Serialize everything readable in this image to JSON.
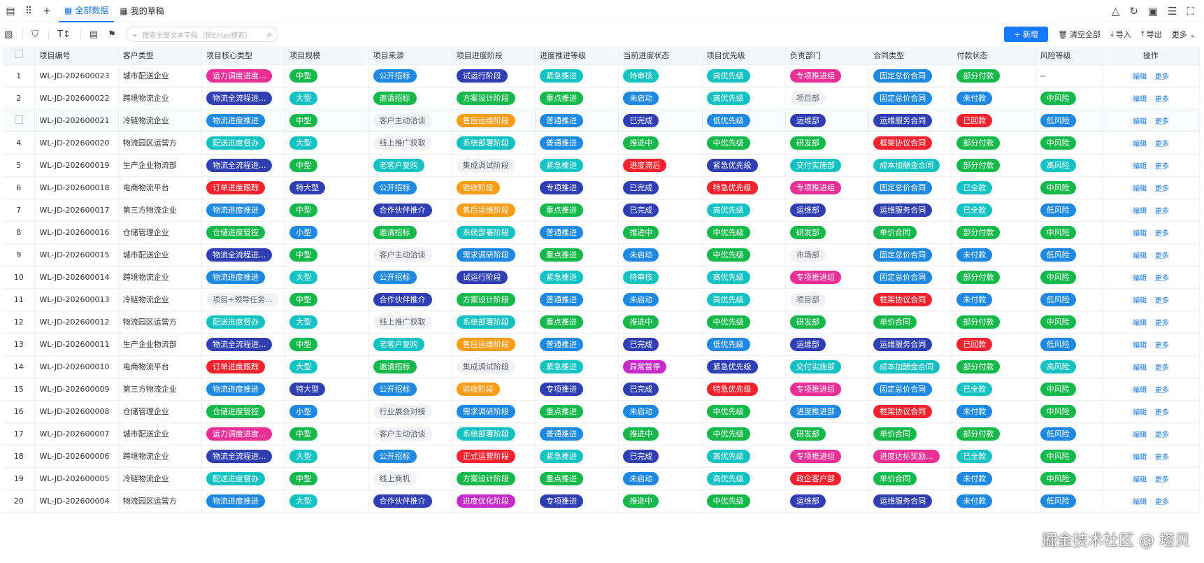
{
  "tabs": [
    {
      "label": "全部数据",
      "active": true
    },
    {
      "label": "我的草稿",
      "active": false
    }
  ],
  "search": {
    "placeholder": "搜索全部文本字段（按Enter搜索）"
  },
  "toolbar": {
    "add": "+ 新增",
    "clear": "清空全部",
    "import": "导入",
    "export": "导出",
    "more": "更多"
  },
  "columns": [
    "",
    "项目编号",
    "客户类型",
    "项目核心类型",
    "项目规模",
    "项目来源",
    "项目进度阶段",
    "进度推进等级",
    "当前进度状态",
    "项目优先级",
    "负责部门",
    "合同类型",
    "付款状态",
    "风险等级",
    "操作"
  ],
  "ops": {
    "edit": "编辑",
    "more": "更多"
  },
  "watermark": "掘金技术社区 @ 塔贝",
  "colors": {
    "pink": "#eb2f96",
    "navy": "#2f3fb3",
    "blue": "#1e88e5",
    "teal": "#13c2c2",
    "green": "#15b84a",
    "red": "#f5222d",
    "orange": "#fa9c14",
    "gray": "#f0f2f5",
    "purple": "#c62bc9"
  },
  "rows": [
    {
      "n": "1",
      "id": "WL-JD-202600023",
      "cust": "城市配送企业",
      "core": [
        "运力调度进度...",
        "pink"
      ],
      "scale": [
        "中型",
        "green"
      ],
      "src": [
        "公开招标",
        "blue"
      ],
      "stage": [
        "试运行阶段",
        "navy"
      ],
      "level": [
        "紧急推进",
        "teal"
      ],
      "state": [
        "待审核",
        "teal"
      ],
      "prio": [
        "高优先级",
        "teal"
      ],
      "dept": [
        "专项推进组",
        "pink"
      ],
      "contract": [
        "固定总价合同",
        "blue"
      ],
      "pay": [
        "部分付款",
        "green"
      ],
      "risk": [
        "--",
        "none"
      ]
    },
    {
      "n": "2",
      "id": "WL-JD-202600022",
      "cust": "跨境物流企业",
      "core": [
        "物流全流程进...",
        "navy"
      ],
      "scale": [
        "大型",
        "teal"
      ],
      "src": [
        "邀请招标",
        "green"
      ],
      "stage": [
        "方案设计阶段",
        "green"
      ],
      "level": [
        "重点推进",
        "green"
      ],
      "state": [
        "未启动",
        "blue"
      ],
      "prio": [
        "高优先级",
        "teal"
      ],
      "dept": [
        "项目部",
        "gray"
      ],
      "contract": [
        "固定总价合同",
        "blue"
      ],
      "pay": [
        "未付款",
        "blue"
      ],
      "risk": [
        "中风险",
        "green"
      ]
    },
    {
      "n": "",
      "id": "WL-JD-202600021",
      "cust": "冷链物流企业",
      "core": [
        "物流进度推进",
        "blue"
      ],
      "scale": [
        "中型",
        "green"
      ],
      "src": [
        "客户主动洽谈",
        "gray"
      ],
      "stage": [
        "售后运维阶段",
        "orange"
      ],
      "level": [
        "普通推进",
        "blue"
      ],
      "state": [
        "已完成",
        "navy"
      ],
      "prio": [
        "低优先级",
        "blue"
      ],
      "dept": [
        "运维部",
        "navy"
      ],
      "contract": [
        "运维服务合同",
        "navy"
      ],
      "pay": [
        "已回款",
        "red"
      ],
      "risk": [
        "低风险",
        "blue"
      ]
    },
    {
      "n": "4",
      "id": "WL-JD-202600020",
      "cust": "物流园区运营方",
      "core": [
        "配送进度督办",
        "teal"
      ],
      "scale": [
        "大型",
        "teal"
      ],
      "src": [
        "线上推广获取",
        "gray"
      ],
      "stage": [
        "系统部署阶段",
        "teal"
      ],
      "level": [
        "普通推进",
        "blue"
      ],
      "state": [
        "推进中",
        "green"
      ],
      "prio": [
        "中优先级",
        "green"
      ],
      "dept": [
        "研发部",
        "green"
      ],
      "contract": [
        "框架协议合同",
        "red"
      ],
      "pay": [
        "部分付款",
        "green"
      ],
      "risk": [
        "中风险",
        "green"
      ]
    },
    {
      "n": "5",
      "id": "WL-JD-202600019",
      "cust": "生产企业物流部",
      "core": [
        "物流全流程进...",
        "navy"
      ],
      "scale": [
        "中型",
        "green"
      ],
      "src": [
        "老客户复购",
        "teal"
      ],
      "stage": [
        "集成调试阶段",
        "gray"
      ],
      "level": [
        "紧急推进",
        "teal"
      ],
      "state": [
        "进度滞后",
        "red"
      ],
      "prio": [
        "紧急优先级",
        "navy"
      ],
      "dept": [
        "交付实施部",
        "teal"
      ],
      "contract": [
        "成本加酬金合同",
        "teal"
      ],
      "pay": [
        "部分付款",
        "green"
      ],
      "risk": [
        "高风险",
        "teal"
      ]
    },
    {
      "n": "6",
      "id": "WL-JD-202600018",
      "cust": "电商物流平台",
      "core": [
        "订单进度跟踪",
        "red"
      ],
      "scale": [
        "特大型",
        "navy"
      ],
      "src": [
        "公开招标",
        "blue"
      ],
      "stage": [
        "验收阶段",
        "orange"
      ],
      "level": [
        "专项推进",
        "navy"
      ],
      "state": [
        "已完成",
        "navy"
      ],
      "prio": [
        "特急优先级",
        "red"
      ],
      "dept": [
        "专项推进组",
        "pink"
      ],
      "contract": [
        "固定总价合同",
        "blue"
      ],
      "pay": [
        "已全款",
        "teal"
      ],
      "risk": [
        "中风险",
        "green"
      ]
    },
    {
      "n": "7",
      "id": "WL-JD-202600017",
      "cust": "第三方物流企业",
      "core": [
        "物流进度推进",
        "blue"
      ],
      "scale": [
        "中型",
        "green"
      ],
      "src": [
        "合作伙伴推介",
        "navy"
      ],
      "stage": [
        "售后运维阶段",
        "orange"
      ],
      "level": [
        "重点推进",
        "green"
      ],
      "state": [
        "已完成",
        "navy"
      ],
      "prio": [
        "高优先级",
        "teal"
      ],
      "dept": [
        "运维部",
        "navy"
      ],
      "contract": [
        "运维服务合同",
        "navy"
      ],
      "pay": [
        "已全款",
        "teal"
      ],
      "risk": [
        "低风险",
        "blue"
      ]
    },
    {
      "n": "8",
      "id": "WL-JD-202600016",
      "cust": "仓储管理企业",
      "core": [
        "仓储进度管控",
        "green"
      ],
      "scale": [
        "小型",
        "blue"
      ],
      "src": [
        "邀请招标",
        "green"
      ],
      "stage": [
        "系统部署阶段",
        "teal"
      ],
      "level": [
        "普通推进",
        "blue"
      ],
      "state": [
        "推进中",
        "green"
      ],
      "prio": [
        "中优先级",
        "green"
      ],
      "dept": [
        "研发部",
        "green"
      ],
      "contract": [
        "单价合同",
        "green"
      ],
      "pay": [
        "部分付款",
        "green"
      ],
      "risk": [
        "中风险",
        "green"
      ]
    },
    {
      "n": "9",
      "id": "WL-JD-202600015",
      "cust": "城市配送企业",
      "core": [
        "物流全流程进...",
        "navy"
      ],
      "scale": [
        "中型",
        "green"
      ],
      "src": [
        "客户主动洽谈",
        "gray"
      ],
      "stage": [
        "需求调研阶段",
        "blue"
      ],
      "level": [
        "重点推进",
        "green"
      ],
      "state": [
        "未启动",
        "blue"
      ],
      "prio": [
        "中优先级",
        "green"
      ],
      "dept": [
        "市场部",
        "gray"
      ],
      "contract": [
        "固定总价合同",
        "blue"
      ],
      "pay": [
        "未付款",
        "blue"
      ],
      "risk": [
        "低风险",
        "blue"
      ]
    },
    {
      "n": "10",
      "id": "WL-JD-202600014",
      "cust": "跨境物流企业",
      "core": [
        "物流进度推进",
        "blue"
      ],
      "scale": [
        "大型",
        "teal"
      ],
      "src": [
        "公开招标",
        "blue"
      ],
      "stage": [
        "试运行阶段",
        "navy"
      ],
      "level": [
        "紧急推进",
        "teal"
      ],
      "state": [
        "待审核",
        "teal"
      ],
      "prio": [
        "高优先级",
        "teal"
      ],
      "dept": [
        "专项推进组",
        "pink"
      ],
      "contract": [
        "固定总价合同",
        "blue"
      ],
      "pay": [
        "部分付款",
        "green"
      ],
      "risk": [
        "中风险",
        "green"
      ]
    },
    {
      "n": "11",
      "id": "WL-JD-202600013",
      "cust": "冷链物流企业",
      "core": [
        "项目+领导任务...",
        "gray"
      ],
      "scale": [
        "中型",
        "green"
      ],
      "src": [
        "合作伙伴推介",
        "navy"
      ],
      "stage": [
        "方案设计阶段",
        "green"
      ],
      "level": [
        "普通推进",
        "blue"
      ],
      "state": [
        "未启动",
        "blue"
      ],
      "prio": [
        "高优先级",
        "teal"
      ],
      "dept": [
        "项目部",
        "gray"
      ],
      "contract": [
        "框架协议合同",
        "red"
      ],
      "pay": [
        "未付款",
        "blue"
      ],
      "risk": [
        "低风险",
        "blue"
      ]
    },
    {
      "n": "12",
      "id": "WL-JD-202600012",
      "cust": "物流园区运营方",
      "core": [
        "配送进度督办",
        "teal"
      ],
      "scale": [
        "大型",
        "teal"
      ],
      "src": [
        "线上推广获取",
        "gray"
      ],
      "stage": [
        "系统部署阶段",
        "teal"
      ],
      "level": [
        "重点推进",
        "green"
      ],
      "state": [
        "推进中",
        "green"
      ],
      "prio": [
        "中优先级",
        "green"
      ],
      "dept": [
        "研发部",
        "green"
      ],
      "contract": [
        "单价合同",
        "green"
      ],
      "pay": [
        "部分付款",
        "green"
      ],
      "risk": [
        "中风险",
        "green"
      ]
    },
    {
      "n": "13",
      "id": "WL-JD-202600011",
      "cust": "生产企业物流部",
      "core": [
        "物流全流程进...",
        "navy"
      ],
      "scale": [
        "中型",
        "green"
      ],
      "src": [
        "老客户复购",
        "teal"
      ],
      "stage": [
        "售后运维阶段",
        "orange"
      ],
      "level": [
        "普通推进",
        "blue"
      ],
      "state": [
        "已完成",
        "navy"
      ],
      "prio": [
        "低优先级",
        "blue"
      ],
      "dept": [
        "运维部",
        "navy"
      ],
      "contract": [
        "运维服务合同",
        "navy"
      ],
      "pay": [
        "已回款",
        "red"
      ],
      "risk": [
        "低风险",
        "blue"
      ]
    },
    {
      "n": "14",
      "id": "WL-JD-202600010",
      "cust": "电商物流平台",
      "core": [
        "订单进度跟踪",
        "red"
      ],
      "scale": [
        "大型",
        "teal"
      ],
      "src": [
        "邀请招标",
        "green"
      ],
      "stage": [
        "集成调试阶段",
        "gray"
      ],
      "level": [
        "紧急推进",
        "teal"
      ],
      "state": [
        "异常暂停",
        "purple"
      ],
      "prio": [
        "紧急优先级",
        "navy"
      ],
      "dept": [
        "交付实施部",
        "teal"
      ],
      "contract": [
        "成本加酬金合同",
        "teal"
      ],
      "pay": [
        "部分付款",
        "green"
      ],
      "risk": [
        "高风险",
        "teal"
      ]
    },
    {
      "n": "15",
      "id": "WL-JD-202600009",
      "cust": "第三方物流企业",
      "core": [
        "物流进度推进",
        "blue"
      ],
      "scale": [
        "特大型",
        "navy"
      ],
      "src": [
        "公开招标",
        "blue"
      ],
      "stage": [
        "验收阶段",
        "orange"
      ],
      "level": [
        "专项推进",
        "navy"
      ],
      "state": [
        "已完成",
        "navy"
      ],
      "prio": [
        "特急优先级",
        "red"
      ],
      "dept": [
        "专项推进组",
        "pink"
      ],
      "contract": [
        "固定总价合同",
        "blue"
      ],
      "pay": [
        "已全款",
        "teal"
      ],
      "risk": [
        "中风险",
        "green"
      ]
    },
    {
      "n": "16",
      "id": "WL-JD-202600008",
      "cust": "仓储管理企业",
      "core": [
        "仓储进度管控",
        "green"
      ],
      "scale": [
        "小型",
        "blue"
      ],
      "src": [
        "行业展会对接",
        "gray"
      ],
      "stage": [
        "需求调研阶段",
        "blue"
      ],
      "level": [
        "重点推进",
        "green"
      ],
      "state": [
        "未启动",
        "blue"
      ],
      "prio": [
        "中优先级",
        "green"
      ],
      "dept": [
        "进度推进部",
        "blue"
      ],
      "contract": [
        "框架协议合同",
        "red"
      ],
      "pay": [
        "未付款",
        "blue"
      ],
      "risk": [
        "中风险",
        "green"
      ]
    },
    {
      "n": "17",
      "id": "WL-JD-202600007",
      "cust": "城市配送企业",
      "core": [
        "运力调度进度...",
        "pink"
      ],
      "scale": [
        "中型",
        "green"
      ],
      "src": [
        "客户主动洽谈",
        "gray"
      ],
      "stage": [
        "系统部署阶段",
        "teal"
      ],
      "level": [
        "普通推进",
        "blue"
      ],
      "state": [
        "推进中",
        "green"
      ],
      "prio": [
        "中优先级",
        "green"
      ],
      "dept": [
        "研发部",
        "green"
      ],
      "contract": [
        "单价合同",
        "green"
      ],
      "pay": [
        "部分付款",
        "green"
      ],
      "risk": [
        "低风险",
        "blue"
      ]
    },
    {
      "n": "18",
      "id": "WL-JD-202600006",
      "cust": "跨境物流企业",
      "core": [
        "物流全流程进...",
        "navy"
      ],
      "scale": [
        "大型",
        "teal"
      ],
      "src": [
        "公开招标",
        "blue"
      ],
      "stage": [
        "正式运营阶段",
        "red"
      ],
      "level": [
        "紧急推进",
        "teal"
      ],
      "state": [
        "已完成",
        "navy"
      ],
      "prio": [
        "高优先级",
        "teal"
      ],
      "dept": [
        "专项推进组",
        "pink"
      ],
      "contract": [
        "进度达标奖励...",
        "pink"
      ],
      "pay": [
        "已全款",
        "teal"
      ],
      "risk": [
        "中风险",
        "green"
      ]
    },
    {
      "n": "19",
      "id": "WL-JD-202600005",
      "cust": "冷链物流企业",
      "core": [
        "配送进度督办",
        "teal"
      ],
      "scale": [
        "中型",
        "green"
      ],
      "src": [
        "线上商机",
        "gray"
      ],
      "stage": [
        "方案设计阶段",
        "green"
      ],
      "level": [
        "重点推进",
        "green"
      ],
      "state": [
        "未启动",
        "blue"
      ],
      "prio": [
        "高优先级",
        "teal"
      ],
      "dept": [
        "政企客户部",
        "red"
      ],
      "contract": [
        "单价合同",
        "green"
      ],
      "pay": [
        "未付款",
        "blue"
      ],
      "risk": [
        "中风险",
        "green"
      ]
    },
    {
      "n": "20",
      "id": "WL-JD-202600004",
      "cust": "物流园区运营方",
      "core": [
        "物流进度推进",
        "blue"
      ],
      "scale": [
        "大型",
        "teal"
      ],
      "src": [
        "合作伙伴推介",
        "navy"
      ],
      "stage": [
        "进度优化阶段",
        "purple"
      ],
      "level": [
        "专项推进",
        "navy"
      ],
      "state": [
        "推进中",
        "green"
      ],
      "prio": [
        "中优先级",
        "green"
      ],
      "dept": [
        "运维部",
        "navy"
      ],
      "contract": [
        "运维服务合同",
        "navy"
      ],
      "pay": [
        "未付款",
        "blue"
      ],
      "risk": [
        "低风险",
        "blue"
      ]
    }
  ]
}
